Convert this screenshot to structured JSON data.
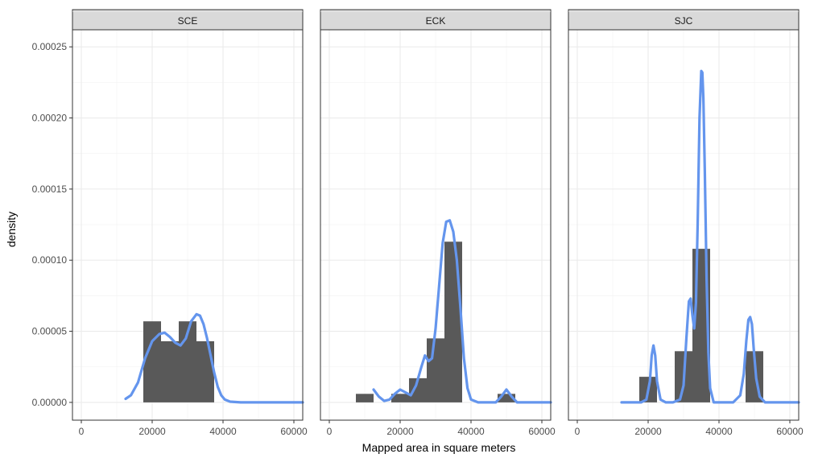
{
  "chart_data": {
    "type": "histogram-density",
    "title": "",
    "xlabel": "Mapped area in square meters",
    "ylabel": "density",
    "xlim": [
      -2500,
      62500
    ],
    "ylim": [
      -1.25e-05,
      0.000262
    ],
    "x_ticks": [
      0,
      20000,
      40000,
      60000
    ],
    "x_tick_labels": [
      "0",
      "20000",
      "40000",
      "60000"
    ],
    "y_ticks": [
      0,
      5e-05,
      0.0001,
      0.00015,
      0.0002,
      0.00025
    ],
    "y_tick_labels": [
      "0.00000",
      "0.00005",
      "0.00010",
      "0.00015",
      "0.00020",
      "0.00025"
    ],
    "grid": true,
    "bar_color": "#595959",
    "density_color": "#6495ED",
    "panel_border_color": "#333333",
    "strip_fill": "#D9D9D9",
    "bin_width": 5000,
    "panels": [
      {
        "label": "SCE",
        "bars": [
          {
            "x0": 17500,
            "x1": 22500,
            "value": 5.7e-05
          },
          {
            "x0": 22500,
            "x1": 27500,
            "value": 4.3e-05
          },
          {
            "x0": 27500,
            "x1": 32500,
            "value": 5.7e-05
          },
          {
            "x0": 32500,
            "x1": 37500,
            "value": 4.3e-05
          }
        ],
        "density": {
          "x": [
            12500,
            14000,
            16000,
            18000,
            20000,
            22000,
            23500,
            25000,
            26500,
            28000,
            29500,
            31000,
            32500,
            33500,
            34500,
            35500,
            36500,
            37500,
            38500,
            39500,
            40500,
            42000,
            45000,
            50000,
            55000,
            62500
          ],
          "y": [
            2.5e-06,
            5e-06,
            1.4e-05,
            3.1e-05,
            4.3e-05,
            4.8e-05,
            4.9e-05,
            4.6e-05,
            4.2e-05,
            4e-05,
            4.5e-05,
            5.7e-05,
            6.2e-05,
            6.1e-05,
            5.5e-05,
            4.5e-05,
            3.3e-05,
            2.1e-05,
            1.1e-05,
            5e-06,
            2e-06,
            5e-07,
            0,
            0,
            0,
            0
          ]
        }
      },
      {
        "label": "ECK",
        "bars": [
          {
            "x0": 7500,
            "x1": 12500,
            "value": 6e-06
          },
          {
            "x0": 17500,
            "x1": 22500,
            "value": 6e-06
          },
          {
            "x0": 22500,
            "x1": 27500,
            "value": 1.7e-05
          },
          {
            "x0": 27500,
            "x1": 32500,
            "value": 4.5e-05
          },
          {
            "x0": 32500,
            "x1": 37500,
            "value": 0.000113
          },
          {
            "x0": 47500,
            "x1": 52500,
            "value": 6e-06
          }
        ],
        "density": {
          "x": [
            12500,
            14000,
            15500,
            17000,
            18500,
            20000,
            21500,
            23000,
            24500,
            26000,
            27000,
            28000,
            29000,
            30000,
            31000,
            32000,
            33000,
            34000,
            35000,
            36000,
            37000,
            38000,
            39000,
            40000,
            42000,
            45000,
            47000,
            48500,
            50000,
            51500,
            53000,
            55000,
            62500
          ],
          "y": [
            9e-06,
            4e-06,
            1e-06,
            2e-06,
            6e-06,
            9e-06,
            7e-06,
            5e-06,
            1.2e-05,
            2.5e-05,
            3.3e-05,
            2.9e-05,
            3.1e-05,
            5.2e-05,
            8.2e-05,
            0.000112,
            0.000127,
            0.000128,
            0.00012,
            0.0001,
            6.7e-05,
            3.1e-05,
            1e-05,
            2e-06,
            0,
            0,
            0,
            4e-06,
            9e-06,
            4e-06,
            0,
            0,
            0
          ]
        }
      },
      {
        "label": "SJC",
        "bars": [
          {
            "x0": 17500,
            "x1": 22500,
            "value": 1.8e-05
          },
          {
            "x0": 27500,
            "x1": 32500,
            "value": 3.6e-05
          },
          {
            "x0": 32500,
            "x1": 37500,
            "value": 0.000108
          },
          {
            "x0": 47500,
            "x1": 52500,
            "value": 3.6e-05
          }
        ],
        "density": {
          "x": [
            12500,
            18000,
            19500,
            20500,
            21000,
            21500,
            22000,
            22500,
            23500,
            25000,
            27000,
            29000,
            30000,
            30800,
            31500,
            32000,
            32500,
            33000,
            33500,
            34000,
            34500,
            35000,
            35300,
            35600,
            36000,
            36500,
            37000,
            37500,
            38500,
            40000,
            44000,
            46000,
            47000,
            47700,
            48300,
            48800,
            49300,
            49800,
            50500,
            51500,
            53000,
            55000,
            62500
          ],
          "y": [
            0,
            0,
            2e-06,
            1.5e-05,
            3.3e-05,
            4e-05,
            3.3e-05,
            1.5e-05,
            2e-06,
            0,
            0,
            2e-06,
            1.2e-05,
            4.5e-05,
            7.1e-05,
            7.3e-05,
            6.1e-05,
            5.2e-05,
            7e-05,
            0.000128,
            0.0002,
            0.000233,
            0.000232,
            0.000214,
            0.000162,
            8.7e-05,
            3.5e-05,
            1e-05,
            0,
            0,
            0,
            5e-06,
            2e-05,
            4.3e-05,
            5.8e-05,
            6e-05,
            5.5e-05,
            3.8e-05,
            1.7e-05,
            4e-06,
            0,
            0,
            0
          ]
        }
      }
    ]
  }
}
